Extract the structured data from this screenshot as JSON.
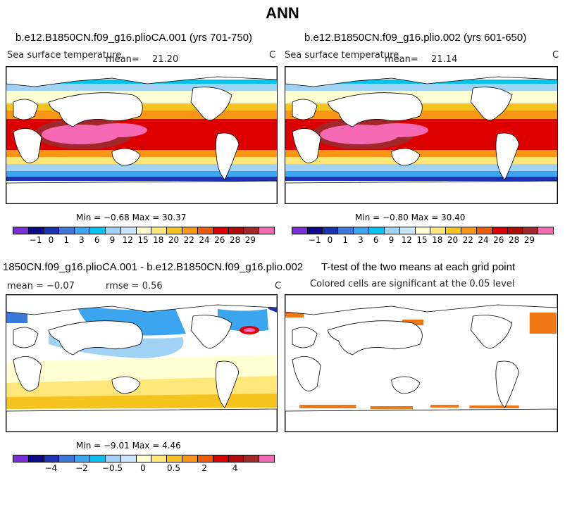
{
  "title": "ANN",
  "panels": [
    {
      "id": "p1",
      "title": "b.e12.B1850CN.f09_g16.plioCA.001 (yrs 701-750)",
      "field": "Sea surface temperature",
      "mean_label": "mean=",
      "mean_value": "21.20",
      "units": "C",
      "min_max": "Min =  −0.68 Max =   30.37"
    },
    {
      "id": "p2",
      "title": "b.e12.B1850CN.f09_g16.plio.002 (yrs 601-650)",
      "field": "Sea surface temperature",
      "mean_label": "mean=",
      "mean_value": "21.14",
      "units": "C",
      "min_max": "Min =  −0.80 Max =   30.40"
    },
    {
      "id": "p3",
      "title": "1850CN.f09_g16.plioCA.001 - b.e12.B1850CN.f09_g16.plio.002",
      "mean_text": "mean =   −0.07",
      "rmse_text": "rmse =     0.56",
      "units": "C",
      "min_max": "Min =  −9.01 Max =    4.46"
    },
    {
      "id": "p4",
      "title": "T-test of the two means at each grid point",
      "subtitle": "Colored cells are significant at the 0.05 level"
    }
  ],
  "colorbar_abs": {
    "colors": [
      "#7a2ed9",
      "#0b0b8a",
      "#1e32b4",
      "#3c78dc",
      "#3ca5f0",
      "#00c3f0",
      "#a0d2f5",
      "#c8e6ff",
      "#ffffd2",
      "#ffe678",
      "#f5c31e",
      "#fa9614",
      "#f05a00",
      "#dc0000",
      "#b40a0a",
      "#a02828",
      "#f569b4"
    ],
    "labels": [
      "−1",
      "0",
      "1",
      "3",
      "6",
      "9",
      "12",
      "15",
      "18",
      "20",
      "22",
      "24",
      "26",
      "28",
      "29"
    ]
  },
  "colorbar_diff": {
    "colors": [
      "#7a2ed9",
      "#0b0b8a",
      "#1e32b4",
      "#3c78dc",
      "#3ca5f0",
      "#00c3f0",
      "#a0d2f5",
      "#c8e6ff",
      "#ffffd2",
      "#ffe678",
      "#f5c31e",
      "#fa9614",
      "#f05a00",
      "#dc0000",
      "#b40a0a",
      "#a02828",
      "#f569b4"
    ],
    "labels": [
      "−4",
      "−2",
      "−0.5",
      "0",
      "0.5",
      "2",
      "4"
    ]
  },
  "sig_color": "#f07814"
}
